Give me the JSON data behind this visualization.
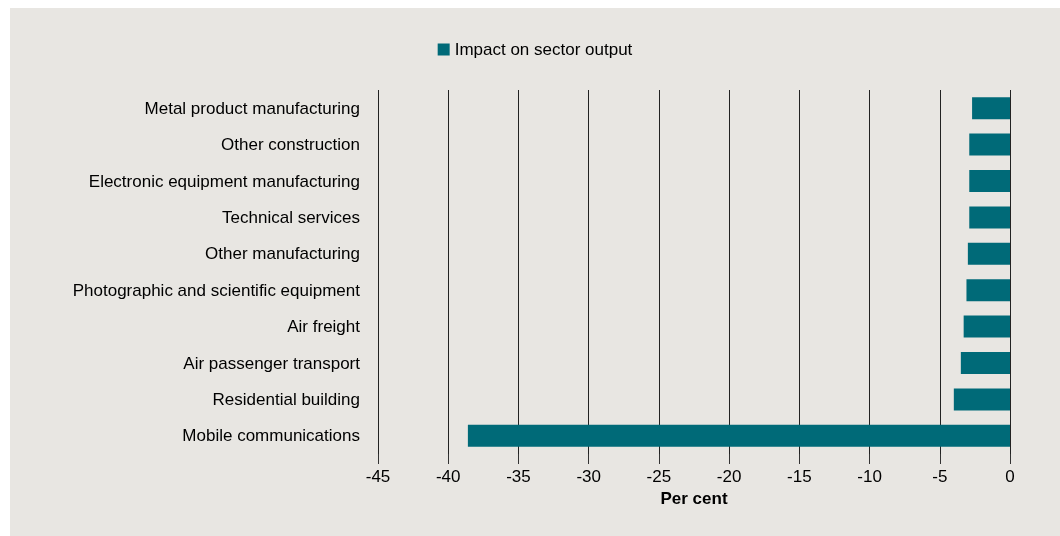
{
  "chart_data": {
    "type": "bar",
    "orientation": "horizontal",
    "categories": [
      "Metal product manufacturing",
      "Other construction",
      "Electronic equipment manufacturing",
      "Technical services",
      "Other manufacturing",
      "Photographic and scientific equipment",
      "Air freight",
      "Air passenger transport",
      "Residential building",
      "Mobile communications"
    ],
    "series": [
      {
        "name": "Impact on sector output",
        "color": "#006a78",
        "values": [
          -2.7,
          -2.9,
          -2.9,
          -2.9,
          -3.0,
          -3.1,
          -3.3,
          -3.5,
          -4.0,
          -38.6
        ]
      }
    ],
    "xlabel": "Per cent",
    "xlim": [
      -45,
      0
    ],
    "xticks": [
      -45,
      -40,
      -35,
      -30,
      -25,
      -20,
      -15,
      -10,
      -5,
      0
    ],
    "grid": "x",
    "legend": "top"
  }
}
